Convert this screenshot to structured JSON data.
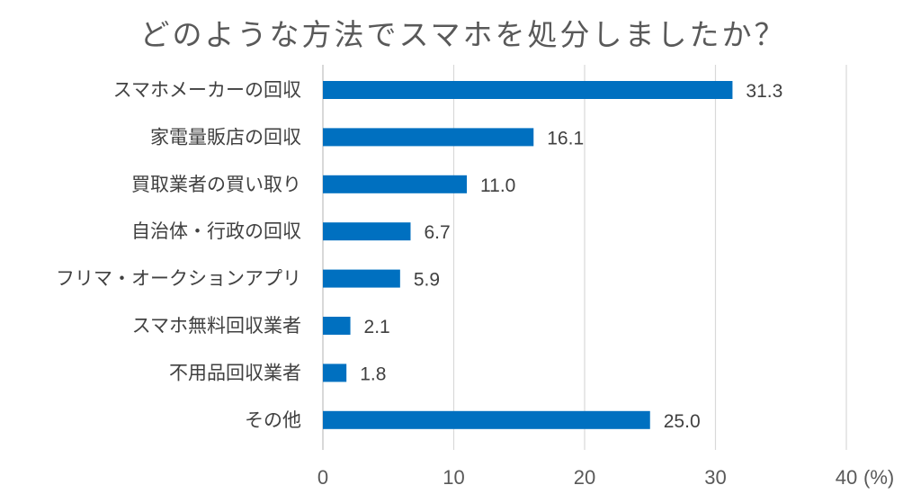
{
  "chart_data": {
    "type": "bar",
    "orientation": "horizontal",
    "title": "どのような方法でスマホを処分しましたか？",
    "categories": [
      "スマホメーカーの回収",
      "家電量販店の回収",
      "買取業者の買い取り",
      "自治体・行政の回収",
      "フリマ・オークションアプリ",
      "スマホ無料回収業者",
      "不用品回収業者",
      "その他"
    ],
    "values": [
      31.3,
      16.1,
      11.0,
      6.7,
      5.9,
      2.1,
      1.8,
      25.0
    ],
    "value_labels": [
      "31.3",
      "16.1",
      "11.0",
      "6.7",
      "5.9",
      "2.1",
      "1.8",
      "25.0"
    ],
    "xlim": [
      0,
      40
    ],
    "xticks": [
      "0",
      "10",
      "20",
      "30",
      "40"
    ],
    "xunit": "(%)",
    "grid": true,
    "bar_color": "#0070C0"
  }
}
